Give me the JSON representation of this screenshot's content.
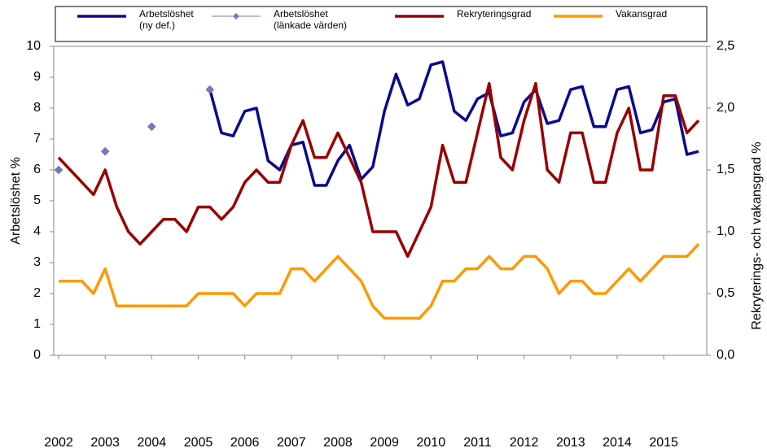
{
  "chart_data": {
    "type": "line",
    "categories": [
      "2002",
      null,
      null,
      null,
      "2003",
      null,
      null,
      null,
      "2004",
      null,
      null,
      null,
      "2005",
      null,
      null,
      null,
      "2006",
      null,
      null,
      null,
      "2007",
      null,
      null,
      null,
      "2008",
      null,
      null,
      null,
      "2009",
      null,
      null,
      null,
      "2010",
      null,
      null,
      null,
      "2011",
      null,
      null,
      null,
      "2012",
      null,
      null,
      null,
      "2013",
      null,
      null,
      null,
      "2014",
      null,
      null,
      null,
      "2015",
      null,
      null,
      null
    ],
    "y_label": "Arbetslöshet %",
    "y2_label": "Rekryterings- och vakansgrad %",
    "ylim": [
      0,
      10
    ],
    "yticks": [
      0,
      1,
      2,
      3,
      4,
      5,
      6,
      7,
      8,
      9,
      10
    ],
    "y2lim": [
      0,
      2.5
    ],
    "y2ticks": [
      {
        "value": 0,
        "label": "0,0"
      },
      {
        "value": 0.5,
        "label": "0,5"
      },
      {
        "value": 1,
        "label": "1,0"
      },
      {
        "value": 1.5,
        "label": "1,5"
      },
      {
        "value": 2,
        "label": "2,0"
      },
      {
        "value": 2.5,
        "label": "2,5"
      }
    ],
    "grid": false,
    "legend": "top",
    "series": [
      {
        "name": "Arbetslöshet\n(ny def.)",
        "color": "#0a0a8c",
        "style": "line",
        "values": [
          null,
          null,
          null,
          null,
          null,
          null,
          null,
          null,
          null,
          null,
          null,
          null,
          null,
          8.6,
          7.2,
          7.1,
          7.9,
          8.0,
          6.3,
          6.0,
          6.8,
          6.9,
          5.5,
          5.5,
          6.3,
          6.8,
          5.7,
          6.1,
          7.9,
          9.1,
          8.1,
          8.3,
          9.4,
          9.5,
          7.9,
          7.6,
          8.3,
          8.5,
          7.1,
          7.2,
          8.2,
          8.6,
          7.5,
          7.6,
          8.6,
          8.7,
          7.4,
          7.4,
          8.6,
          8.7,
          7.2,
          7.3,
          8.2,
          8.3,
          6.5,
          6.6
        ]
      },
      {
        "name": "Arbetslöshet\n(länkade värden)",
        "color": "#7878c0",
        "style": "marker",
        "values": [
          6.0,
          null,
          null,
          null,
          6.6,
          null,
          null,
          null,
          7.4,
          null,
          null,
          null,
          null,
          8.6,
          null,
          null,
          null,
          null,
          null,
          null,
          null,
          null,
          null,
          null,
          null,
          null,
          null,
          null,
          null,
          null,
          null,
          null,
          null,
          null,
          null,
          null,
          null,
          null,
          null,
          null,
          null,
          null,
          null,
          null,
          null,
          null,
          null,
          null,
          null,
          null,
          null,
          null,
          null,
          null,
          null,
          null
        ]
      },
      {
        "name": "Rekryteringsgrad",
        "color": "#990000",
        "style": "line",
        "axis": "y2",
        "values": [
          1.6,
          1.5,
          1.4,
          1.3,
          1.5,
          1.2,
          1.0,
          0.9,
          1.0,
          1.1,
          1.1,
          1.0,
          1.2,
          1.2,
          1.1,
          1.2,
          1.4,
          1.5,
          1.4,
          1.4,
          1.7,
          1.9,
          1.6,
          1.6,
          1.8,
          1.6,
          1.4,
          1.0,
          1.0,
          1.0,
          0.8,
          1.0,
          1.2,
          1.7,
          1.4,
          1.4,
          1.8,
          2.2,
          1.6,
          1.5,
          1.9,
          2.2,
          1.5,
          1.4,
          1.8,
          1.8,
          1.4,
          1.4,
          1.8,
          2.0,
          1.5,
          1.5,
          2.1,
          2.1,
          1.8,
          1.9
        ]
      },
      {
        "name": "Vakansgrad",
        "color": "#ff9900",
        "style": "line",
        "axis": "y2",
        "values": [
          0.6,
          0.6,
          0.6,
          0.5,
          0.7,
          0.4,
          0.4,
          0.4,
          0.4,
          0.4,
          0.4,
          0.4,
          0.5,
          0.5,
          0.5,
          0.5,
          0.4,
          0.5,
          0.5,
          0.5,
          0.7,
          0.7,
          0.6,
          0.7,
          0.8,
          0.7,
          0.6,
          0.4,
          0.3,
          0.3,
          0.3,
          0.3,
          0.4,
          0.6,
          0.6,
          0.7,
          0.7,
          0.8,
          0.7,
          0.7,
          0.8,
          0.8,
          0.7,
          0.5,
          0.6,
          0.6,
          0.5,
          0.5,
          0.6,
          0.7,
          0.6,
          0.7,
          0.8,
          0.8,
          0.8,
          0.9
        ]
      }
    ]
  }
}
